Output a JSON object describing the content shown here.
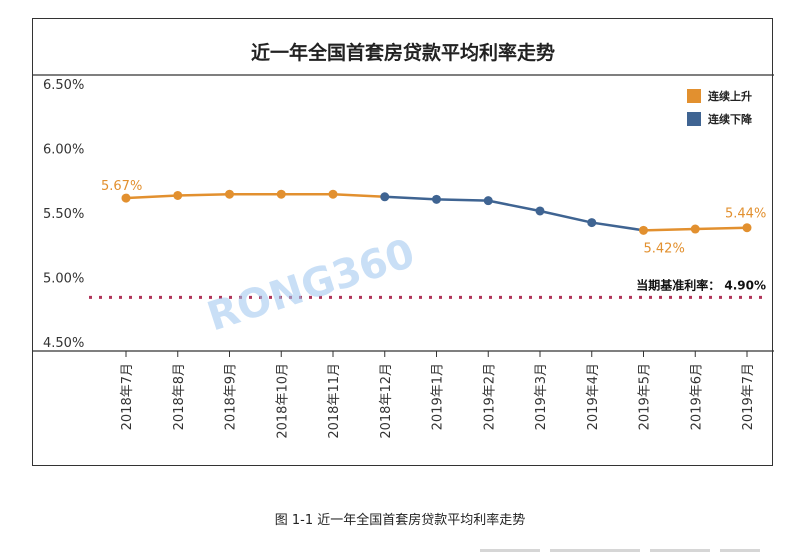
{
  "figure": {
    "watermark": "RONG360",
    "caption": "图 1-1  近一年全国首套房贷款平均利率走势"
  },
  "chart_data": {
    "type": "line",
    "title": "近一年全国首套房贷款平均利率走势",
    "xlabel": "",
    "ylabel": "",
    "categories": [
      "2018年7月",
      "2018年8月",
      "2018年9月",
      "2018年10月",
      "2018年11月",
      "2018年12月",
      "2019年1月",
      "2019年2月",
      "2019年3月",
      "2019年4月",
      "2019年5月",
      "2019年6月",
      "2019年7月"
    ],
    "values": [
      5.67,
      5.69,
      5.7,
      5.7,
      5.7,
      5.68,
      5.66,
      5.65,
      5.57,
      5.48,
      5.42,
      5.43,
      5.44
    ],
    "series": [
      {
        "name": "连续上升",
        "color": "#e2902f",
        "segments": [
          [
            0,
            5
          ],
          [
            10,
            12
          ]
        ]
      },
      {
        "name": "连续下降",
        "color": "#3f6492",
        "segments": [
          [
            5,
            10
          ]
        ]
      }
    ],
    "point_colors": [
      "#e2902f",
      "#e2902f",
      "#e2902f",
      "#e2902f",
      "#e2902f",
      "#3f6492",
      "#3f6492",
      "#3f6492",
      "#3f6492",
      "#3f6492",
      "#e2902f",
      "#e2902f",
      "#e2902f"
    ],
    "yticks": [
      "6.50%",
      "6.00%",
      "5.50%",
      "5.00%",
      "4.50%"
    ],
    "ytick_values": [
      6.5,
      6.0,
      5.5,
      5.0,
      4.5
    ],
    "ylim": [
      4.5,
      6.5
    ],
    "data_labels": [
      {
        "index": 0,
        "text": "5.67%"
      },
      {
        "index": 10,
        "text": "5.42%"
      },
      {
        "index": 12,
        "text": "5.44%"
      }
    ],
    "reference_line": {
      "value": 4.9,
      "label": "当期基准利率：  4.90%",
      "color": "#b0345a"
    },
    "grid": false,
    "legend_position": "top-right"
  }
}
